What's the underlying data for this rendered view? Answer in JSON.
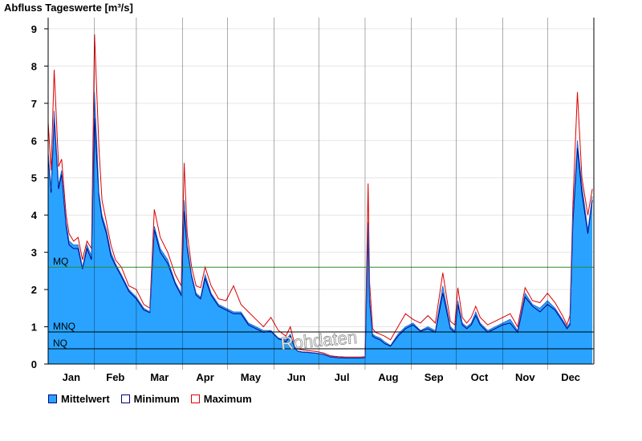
{
  "chart_data": {
    "type": "area",
    "title": "Abfluss Tageswerte [m³/s]",
    "xlabel": "",
    "ylabel": "",
    "ylim": [
      0,
      9.3
    ],
    "yticks": [
      0,
      1,
      2,
      3,
      4,
      5,
      6,
      7,
      8,
      9
    ],
    "months": [
      "Jan",
      "Feb",
      "Mar",
      "Apr",
      "May",
      "Jun",
      "Jul",
      "Aug",
      "Sep",
      "Oct",
      "Nov",
      "Dec"
    ],
    "watermark": "Rohdaten",
    "reference_lines": [
      {
        "label": "MQ",
        "value": 2.6,
        "color": "#2e8b2e"
      },
      {
        "label": "MNQ",
        "value": 0.86,
        "color": "#000000"
      },
      {
        "label": "NQ",
        "value": 0.41,
        "color": "#000000"
      }
    ],
    "series": [
      {
        "name": "Mittelwert",
        "color": "#29a3ff",
        "x": [
          1,
          3,
          5,
          8,
          10,
          13,
          15,
          18,
          21,
          24,
          27,
          30,
          32,
          35,
          37,
          40,
          43,
          46,
          50,
          55,
          60,
          65,
          69,
          72,
          76,
          81,
          86,
          90,
          92,
          94,
          97,
          100,
          103,
          106,
          110,
          115,
          120,
          125,
          130,
          135,
          140,
          145,
          150,
          155,
          160,
          163,
          166,
          168,
          171,
          175,
          180,
          185,
          190,
          195,
          200,
          205,
          210,
          213,
          215,
          216,
          218,
          220,
          223,
          226,
          230,
          235,
          240,
          245,
          250,
          255,
          260,
          265,
          270,
          273,
          275,
          278,
          281,
          284,
          287,
          290,
          295,
          300,
          305,
          310,
          315,
          320,
          325,
          330,
          335,
          340,
          345,
          348,
          350,
          352,
          355,
          358,
          362,
          365
        ],
        "y": [
          5.7,
          4.7,
          6.8,
          4.8,
          5.2,
          3.8,
          3.3,
          3.2,
          3.2,
          2.6,
          3.2,
          2.9,
          7.3,
          4.6,
          4.0,
          3.6,
          3.0,
          2.7,
          2.4,
          2.0,
          1.8,
          1.5,
          1.4,
          3.7,
          3.1,
          2.8,
          2.2,
          1.9,
          4.4,
          3.2,
          2.4,
          1.9,
          1.8,
          2.4,
          1.9,
          1.6,
          1.5,
          1.4,
          1.4,
          1.1,
          1.0,
          0.9,
          0.9,
          0.7,
          0.65,
          0.8,
          0.45,
          0.35,
          0.33,
          0.32,
          0.3,
          0.27,
          0.2,
          0.18,
          0.17,
          0.17,
          0.17,
          0.18,
          3.8,
          1.8,
          0.8,
          0.75,
          0.7,
          0.6,
          0.5,
          0.8,
          1.0,
          1.1,
          0.9,
          1.0,
          0.9,
          2.1,
          1.0,
          0.9,
          1.7,
          1.1,
          1.0,
          1.1,
          1.4,
          1.1,
          0.9,
          1.0,
          1.1,
          1.2,
          0.9,
          1.9,
          1.6,
          1.5,
          1.7,
          1.5,
          1.2,
          1.0,
          1.1,
          4.0,
          6.0,
          4.8,
          3.6,
          4.5
        ]
      },
      {
        "name": "Minimum",
        "color": "#000080",
        "x": [
          1,
          3,
          5,
          8,
          10,
          13,
          15,
          18,
          21,
          24,
          27,
          30,
          32,
          35,
          37,
          40,
          43,
          46,
          50,
          55,
          60,
          65,
          69,
          72,
          76,
          81,
          86,
          90,
          92,
          94,
          97,
          100,
          103,
          106,
          110,
          115,
          120,
          125,
          130,
          135,
          140,
          145,
          150,
          155,
          160,
          163,
          166,
          168,
          171,
          175,
          180,
          185,
          190,
          195,
          200,
          205,
          210,
          213,
          215,
          216,
          218,
          220,
          223,
          226,
          230,
          235,
          240,
          245,
          250,
          255,
          260,
          265,
          270,
          273,
          275,
          278,
          281,
          284,
          287,
          290,
          295,
          300,
          305,
          310,
          315,
          320,
          325,
          330,
          335,
          340,
          345,
          348,
          350,
          352,
          355,
          358,
          362,
          365
        ],
        "y": [
          5.6,
          4.6,
          6.6,
          4.7,
          5.1,
          3.7,
          3.2,
          3.1,
          3.1,
          2.55,
          3.1,
          2.8,
          6.6,
          4.5,
          3.9,
          3.5,
          2.9,
          2.65,
          2.35,
          1.95,
          1.75,
          1.45,
          1.38,
          3.6,
          3.0,
          2.7,
          2.15,
          1.85,
          4.1,
          3.1,
          2.35,
          1.85,
          1.75,
          2.3,
          1.85,
          1.55,
          1.45,
          1.35,
          1.35,
          1.05,
          0.95,
          0.85,
          0.88,
          0.68,
          0.6,
          0.75,
          0.43,
          0.34,
          0.32,
          0.31,
          0.29,
          0.26,
          0.19,
          0.17,
          0.16,
          0.16,
          0.16,
          0.17,
          3.5,
          1.7,
          0.75,
          0.7,
          0.65,
          0.55,
          0.48,
          0.75,
          0.95,
          1.05,
          0.88,
          0.95,
          0.85,
          1.9,
          0.95,
          0.85,
          1.6,
          1.05,
          0.95,
          1.05,
          1.3,
          1.05,
          0.85,
          0.95,
          1.05,
          1.1,
          0.85,
          1.8,
          1.55,
          1.4,
          1.6,
          1.45,
          1.15,
          0.95,
          1.05,
          3.8,
          5.8,
          4.6,
          3.5,
          4.4
        ]
      },
      {
        "name": "Maximum",
        "color": "#dd0000",
        "x": [
          1,
          3,
          5,
          8,
          10,
          13,
          15,
          18,
          21,
          24,
          27,
          30,
          32,
          35,
          37,
          40,
          43,
          46,
          50,
          55,
          60,
          65,
          69,
          72,
          76,
          81,
          86,
          90,
          92,
          94,
          97,
          100,
          103,
          106,
          110,
          115,
          120,
          125,
          130,
          135,
          140,
          145,
          150,
          155,
          160,
          163,
          166,
          168,
          171,
          175,
          180,
          185,
          190,
          195,
          200,
          205,
          210,
          213,
          215,
          216,
          218,
          220,
          223,
          226,
          230,
          235,
          240,
          245,
          250,
          255,
          260,
          265,
          270,
          273,
          275,
          278,
          281,
          284,
          287,
          290,
          295,
          300,
          305,
          310,
          315,
          320,
          325,
          330,
          335,
          340,
          345,
          348,
          350,
          352,
          355,
          358,
          362,
          365
        ],
        "y": [
          6.5,
          5.2,
          7.9,
          5.3,
          5.5,
          4.0,
          3.5,
          3.3,
          3.4,
          2.8,
          3.3,
          3.1,
          8.85,
          5.8,
          4.4,
          3.8,
          3.2,
          2.8,
          2.6,
          2.1,
          2.0,
          1.6,
          1.5,
          4.15,
          3.4,
          3.0,
          2.4,
          2.1,
          5.4,
          3.5,
          2.6,
          2.1,
          2.05,
          2.6,
          2.1,
          1.75,
          1.7,
          2.1,
          1.6,
          1.4,
          1.2,
          1.0,
          1.25,
          0.9,
          0.75,
          1.0,
          0.5,
          0.4,
          0.38,
          0.36,
          0.34,
          0.3,
          0.22,
          0.2,
          0.19,
          0.19,
          0.19,
          0.2,
          4.85,
          2.2,
          0.95,
          0.85,
          0.8,
          0.75,
          0.65,
          1.0,
          1.35,
          1.2,
          1.1,
          1.3,
          1.1,
          2.45,
          1.15,
          1.05,
          2.05,
          1.25,
          1.1,
          1.25,
          1.55,
          1.25,
          1.05,
          1.15,
          1.25,
          1.35,
          1.0,
          2.05,
          1.7,
          1.65,
          1.9,
          1.65,
          1.3,
          1.05,
          1.3,
          4.3,
          7.3,
          5.0,
          4.0,
          4.7
        ]
      }
    ],
    "legend": {
      "position": "bottom-left",
      "entries": [
        "Mittelwert",
        "Minimum",
        "Maximum"
      ]
    }
  }
}
